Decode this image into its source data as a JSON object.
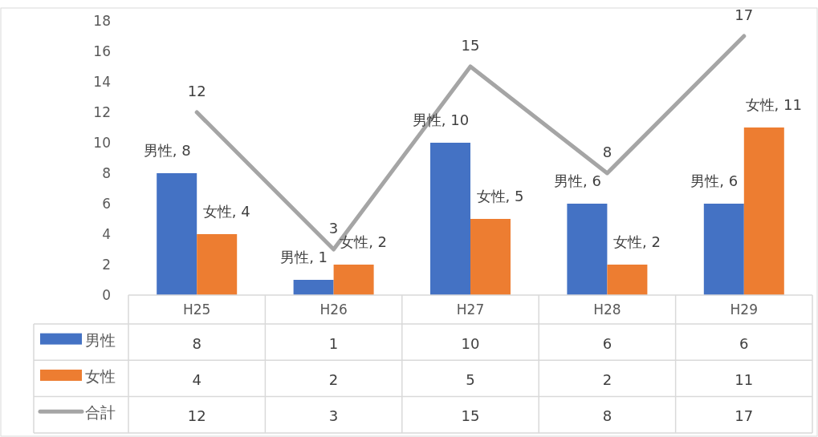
{
  "chart_data": {
    "type": "bar",
    "categories": [
      "H25",
      "H26",
      "H27",
      "H28",
      "H29"
    ],
    "series": [
      {
        "name": "男性",
        "color": "#4472c4",
        "values": [
          8,
          1,
          10,
          6,
          6
        ]
      },
      {
        "name": "女性",
        "color": "#ed7d31",
        "values": [
          4,
          2,
          5,
          2,
          11
        ]
      },
      {
        "name": "合計",
        "type": "line",
        "color": "#a5a5a5",
        "values": [
          12,
          3,
          15,
          8,
          17
        ]
      }
    ],
    "annotations": [
      {
        "text": "男性, 8",
        "x": "H25",
        "y": 8
      },
      {
        "text": "男性, 1",
        "x": "H26",
        "y": 1
      },
      {
        "text": "男性, 10",
        "x": "H27",
        "y": 10
      },
      {
        "text": "男性, 6",
        "x": "H28",
        "y": 6
      },
      {
        "text": "男性, 6",
        "x": "H29",
        "y": 6
      },
      {
        "text": "女性, 4",
        "x": "H25",
        "y": 4
      },
      {
        "text": "女性, 2",
        "x": "H26",
        "y": 2
      },
      {
        "text": "女性, 5",
        "x": "H27",
        "y": 5
      },
      {
        "text": "女性, 2",
        "x": "H28",
        "y": 2
      },
      {
        "text": "女性, 11",
        "x": "H29",
        "y": 11
      },
      {
        "text": "12",
        "x": "H25",
        "y": 12
      },
      {
        "text": "3",
        "x": "H26",
        "y": 3
      },
      {
        "text": "15",
        "x": "H27",
        "y": 15
      },
      {
        "text": "8",
        "x": "H28",
        "y": 8
      },
      {
        "text": "17",
        "x": "H29",
        "y": 17
      }
    ],
    "ylim": [
      0,
      18
    ],
    "yticks": [
      0,
      2,
      4,
      6,
      8,
      10,
      12,
      14,
      16,
      18
    ],
    "legend": "bottom",
    "data_labels": true
  }
}
